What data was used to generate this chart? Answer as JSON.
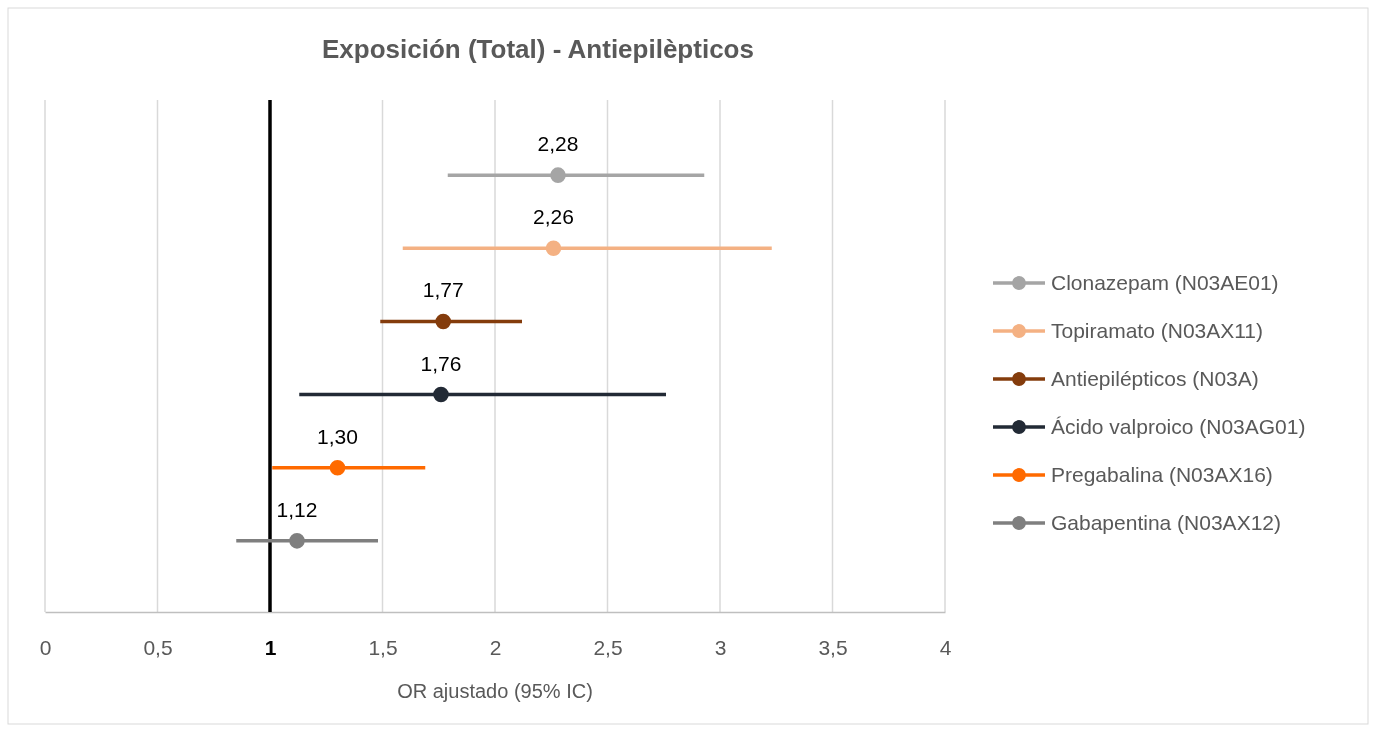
{
  "chart_data": {
    "type": "scatter",
    "orientation": "horizontal",
    "title": "Exposición (Total) - Antiepilèpticos",
    "xlabel": "OR ajustado  (95% IC)",
    "categories": [
      null,
      null,
      null,
      null,
      null,
      null
    ],
    "series": [
      {
        "name": "Clonazepam (N03AE01)",
        "color": "#a5a5a5",
        "values": [
          2.28,
          null,
          null,
          null,
          null,
          null
        ],
        "errors": [
          [
            1.79,
            2.93
          ],
          null,
          null,
          null,
          null,
          null
        ],
        "value_labels": [
          "2,28",
          null,
          null,
          null,
          null,
          null
        ]
      },
      {
        "name": "Topiramato (N03AX11)",
        "color": "#f4b183",
        "values": [
          null,
          2.26,
          null,
          null,
          null,
          null
        ],
        "errors": [
          null,
          [
            1.59,
            3.23
          ],
          null,
          null,
          null,
          null
        ],
        "value_labels": [
          null,
          "2,26",
          null,
          null,
          null,
          null
        ]
      },
      {
        "name": "Antiepilépticos (N03A)",
        "color": "#843c0c",
        "values": [
          null,
          null,
          1.77,
          null,
          null,
          null
        ],
        "errors": [
          null,
          null,
          [
            1.49,
            2.12
          ],
          null,
          null,
          null
        ],
        "value_labels": [
          null,
          null,
          "1,77",
          null,
          null,
          null
        ]
      },
      {
        "name": "Ácido valproico (N03AG01)",
        "color": "#222a35",
        "values": [
          null,
          null,
          null,
          1.76,
          null,
          null
        ],
        "errors": [
          null,
          null,
          null,
          [
            1.13,
            2.76
          ],
          null,
          null
        ],
        "value_labels": [
          null,
          null,
          null,
          "1,76",
          null,
          null
        ]
      },
      {
        "name": "Pregabalina (N03AX16)",
        "color": "#ff6a00",
        "values": [
          null,
          null,
          null,
          null,
          1.3,
          null
        ],
        "errors": [
          null,
          null,
          null,
          null,
          [
            1.01,
            1.69
          ],
          null
        ],
        "value_labels": [
          null,
          null,
          null,
          null,
          "1,30",
          null
        ]
      },
      {
        "name": "Gabapentina (N03AX12)",
        "color": "#7f7f7f",
        "values": [
          null,
          null,
          null,
          null,
          null,
          1.12
        ],
        "errors": [
          null,
          null,
          null,
          null,
          null,
          [
            0.85,
            1.48
          ]
        ],
        "value_labels": [
          null,
          null,
          null,
          null,
          null,
          "1,12"
        ]
      }
    ],
    "xlim": [
      0,
      4
    ],
    "xticks": [
      0,
      {
        "value": 0.5,
        "label": "0,5"
      },
      1,
      {
        "value": 1.5,
        "label": "1,5"
      },
      2,
      {
        "value": 2.5,
        "label": "2,5"
      },
      3,
      {
        "value": 3.5,
        "label": "3,5"
      },
      4
    ],
    "ref_lines": [
      {
        "axis": "x",
        "value": 1,
        "color": "#000000"
      }
    ],
    "grid": "x",
    "legend": "right",
    "marker": "circle",
    "tick_labels": "x"
  }
}
